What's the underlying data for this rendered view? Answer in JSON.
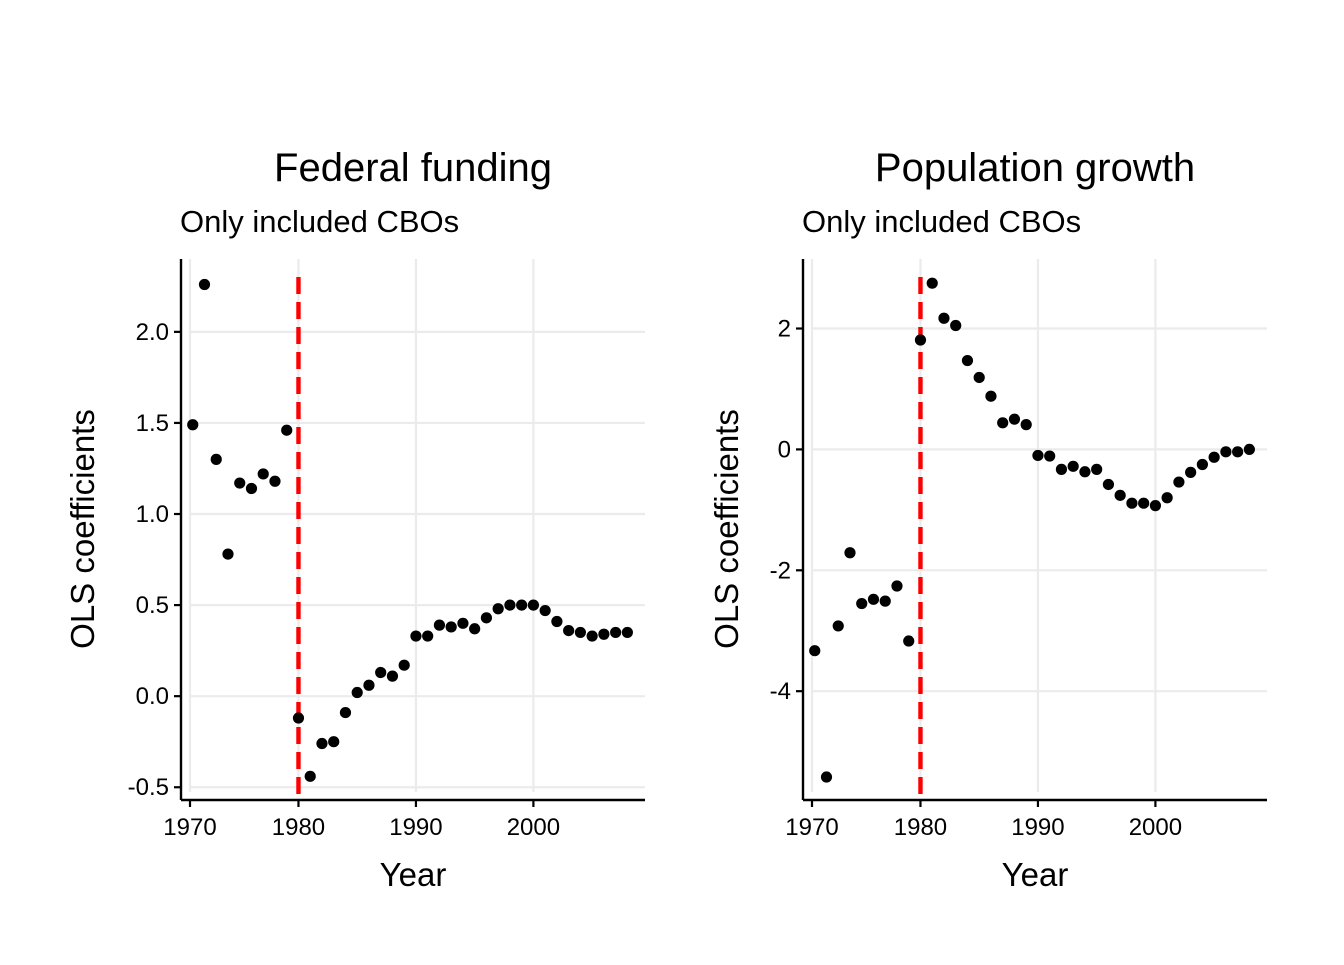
{
  "colors": {
    "points": "#000000",
    "reference_line": "#ff0000",
    "grid": "#ebebeb"
  },
  "chart_data": [
    {
      "type": "scatter",
      "title": "Federal funding",
      "subtitle": "Only included CBOs",
      "xlabel": "Year",
      "ylabel": "OLS coefficients",
      "xlim": [
        1970,
        2009.5
      ],
      "ylim": [
        -0.57,
        2.4
      ],
      "xticks": [
        1970,
        1980,
        1990,
        2000
      ],
      "xtick_labels": [
        "1970",
        "1980",
        "1990",
        "2000"
      ],
      "yticks": [
        -0.5,
        0.0,
        0.5,
        1.0,
        1.5,
        2.0
      ],
      "ytick_labels": [
        "-0.5",
        "0.0",
        "0.5",
        "1.0",
        "1.5",
        "2.0"
      ],
      "vline": 1980,
      "grid": true,
      "x": [
        1971,
        1972,
        1973,
        1974,
        1975,
        1976,
        1977,
        1978,
        1979,
        1980,
        1981,
        1982,
        1983,
        1984,
        1985,
        1986,
        1987,
        1988,
        1989,
        1990,
        1991,
        1992,
        1993,
        1994,
        1995,
        1996,
        1997,
        1998,
        1999,
        2000,
        2001,
        2002,
        2003,
        2004,
        2005,
        2006,
        2007,
        2008
      ],
      "y": [
        1.49,
        2.26,
        1.3,
        0.78,
        1.17,
        1.14,
        1.22,
        1.18,
        1.46,
        -0.12,
        -0.44,
        -0.26,
        -0.25,
        -0.09,
        0.02,
        0.06,
        0.13,
        0.11,
        0.17,
        0.33,
        0.33,
        0.39,
        0.38,
        0.4,
        0.37,
        0.43,
        0.48,
        0.5,
        0.5,
        0.5,
        0.47,
        0.41,
        0.36,
        0.35,
        0.33,
        0.34,
        0.35,
        0.35
      ]
    },
    {
      "type": "scatter",
      "title": "Population growth",
      "subtitle": "Only included CBOs",
      "xlabel": "Year",
      "ylabel": "OLS coefficients",
      "xlim": [
        1970,
        2009.5
      ],
      "ylim": [
        -5.8,
        3.15
      ],
      "xticks": [
        1970,
        1980,
        1990,
        2000
      ],
      "xtick_labels": [
        "1970",
        "1980",
        "1990",
        "2000"
      ],
      "yticks": [
        -4,
        -2,
        0,
        2
      ],
      "ytick_labels": [
        "-4",
        "-2",
        "0",
        "2"
      ],
      "vline": 1980,
      "grid": true,
      "x": [
        1971,
        1972,
        1973,
        1974,
        1975,
        1976,
        1977,
        1978,
        1979,
        1980,
        1981,
        1982,
        1983,
        1984,
        1985,
        1986,
        1987,
        1988,
        1989,
        1990,
        1991,
        1992,
        1993,
        1994,
        1995,
        1996,
        1997,
        1998,
        1999,
        2000,
        2001,
        2002,
        2003,
        2004,
        2005,
        2006,
        2007,
        2008
      ],
      "y": [
        -3.33,
        -5.42,
        -2.92,
        -1.71,
        -2.55,
        -2.48,
        -2.51,
        -2.26,
        -3.17,
        1.81,
        2.75,
        2.17,
        2.05,
        1.47,
        1.19,
        0.88,
        0.44,
        0.5,
        0.41,
        -0.1,
        -0.11,
        -0.33,
        -0.28,
        -0.37,
        -0.33,
        -0.58,
        -0.76,
        -0.89,
        -0.89,
        -0.93,
        -0.8,
        -0.54,
        -0.38,
        -0.25,
        -0.13,
        -0.04,
        -0.04,
        0.0
      ]
    }
  ]
}
